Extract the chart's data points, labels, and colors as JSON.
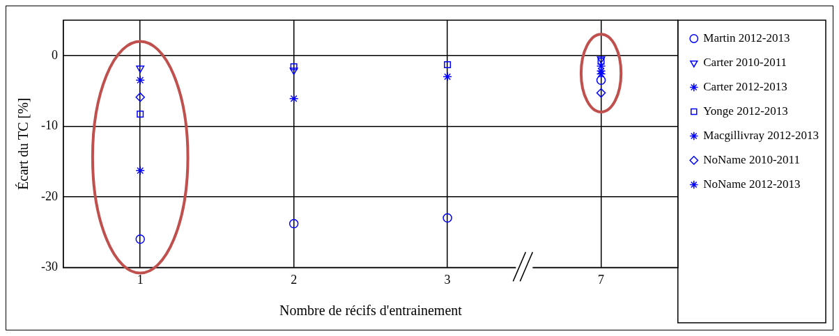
{
  "chart_data": {
    "type": "scatter",
    "xlabel": "Nombre de récifs d'entrainement",
    "ylabel": "Écart du TC [%]",
    "categories": [
      "1",
      "2",
      "3",
      "7"
    ],
    "ylim": [
      -30,
      5
    ],
    "yticks": [
      0,
      -10,
      -20,
      -30
    ],
    "grid": true,
    "legend": "right",
    "series": [
      {
        "name": "Martin 2012-2013",
        "color": "#0000ff",
        "marker": "circle",
        "values": [
          -26,
          -23.8,
          -23,
          -3.5
        ]
      },
      {
        "name": "Carter 2010-2011",
        "color": "#0000ff",
        "marker": "triangle",
        "values": [
          -1.8,
          -2.1,
          null,
          -0.5
        ]
      },
      {
        "name": "Carter 2012-2013",
        "color": "#0000ff",
        "marker": "cross",
        "values": [
          -3.5,
          null,
          null,
          -2.2
        ]
      },
      {
        "name": "Yonge 2012-2013",
        "color": "#0000ff",
        "marker": "square",
        "values": [
          -8.3,
          -1.6,
          -1.3,
          -0.8
        ]
      },
      {
        "name": "Macgillivray 2012-2013",
        "color": "#0000ff",
        "marker": "cross",
        "values": [
          null,
          -6.1,
          -3,
          -1.5
        ]
      },
      {
        "name": "NoName 2010-2011",
        "color": "#0000ff",
        "marker": "diamond",
        "values": [
          -5.9,
          null,
          null,
          -5.3
        ]
      },
      {
        "name": "NoName 2012-2013",
        "color": "#0000ff",
        "marker": "cross",
        "values": [
          -16.3,
          null,
          null,
          -2.6
        ]
      }
    ]
  }
}
